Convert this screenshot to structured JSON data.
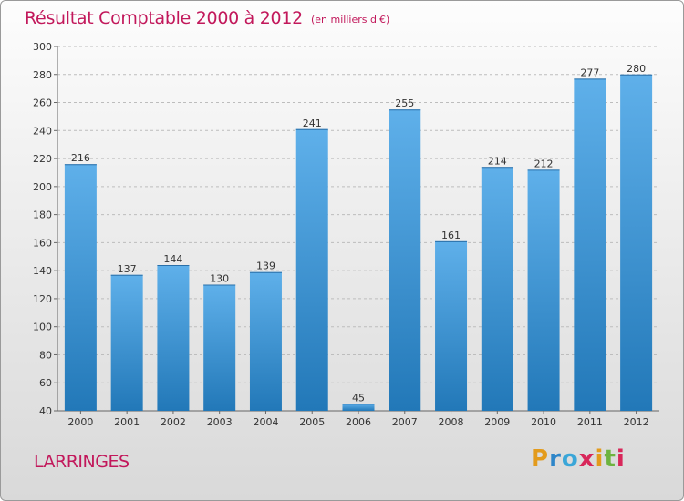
{
  "title": "Résultat Comptable 2000 à 2012",
  "subtitle": "(en milliers d'€)",
  "location": "LARRINGES",
  "logo": {
    "text": "Proxiti",
    "letters": [
      {
        "ch": "P",
        "color": "#e39b1c"
      },
      {
        "ch": "r",
        "color": "#2e86c9"
      },
      {
        "ch": "o",
        "color": "#3aa6d8"
      },
      {
        "ch": "x",
        "color": "#d8275a"
      },
      {
        "ch": "i",
        "color": "#e39b1c"
      },
      {
        "ch": "t",
        "color": "#6db33f"
      },
      {
        "ch": "i",
        "color": "#d8275a"
      }
    ]
  },
  "colors": {
    "title": "#c2185b",
    "bar_top": "#5fb0ea",
    "bar_bottom": "#2278b8",
    "grid": "#bdbdbd"
  },
  "chart_data": {
    "type": "bar",
    "title": "Résultat Comptable 2000 à 2012",
    "subtitle": "(en milliers d'€)",
    "categories": [
      "2000",
      "2001",
      "2002",
      "2003",
      "2004",
      "2005",
      "2006",
      "2007",
      "2008",
      "2009",
      "2010",
      "2011",
      "2012"
    ],
    "values": [
      216,
      137,
      144,
      130,
      139,
      241,
      45,
      255,
      161,
      214,
      212,
      277,
      280
    ],
    "ylim": [
      40,
      300
    ],
    "yticks": [
      40,
      60,
      80,
      100,
      120,
      140,
      160,
      180,
      200,
      220,
      240,
      260,
      280,
      300
    ],
    "grid": true,
    "grid_style": "dashed horizontal",
    "data_labels": true
  }
}
